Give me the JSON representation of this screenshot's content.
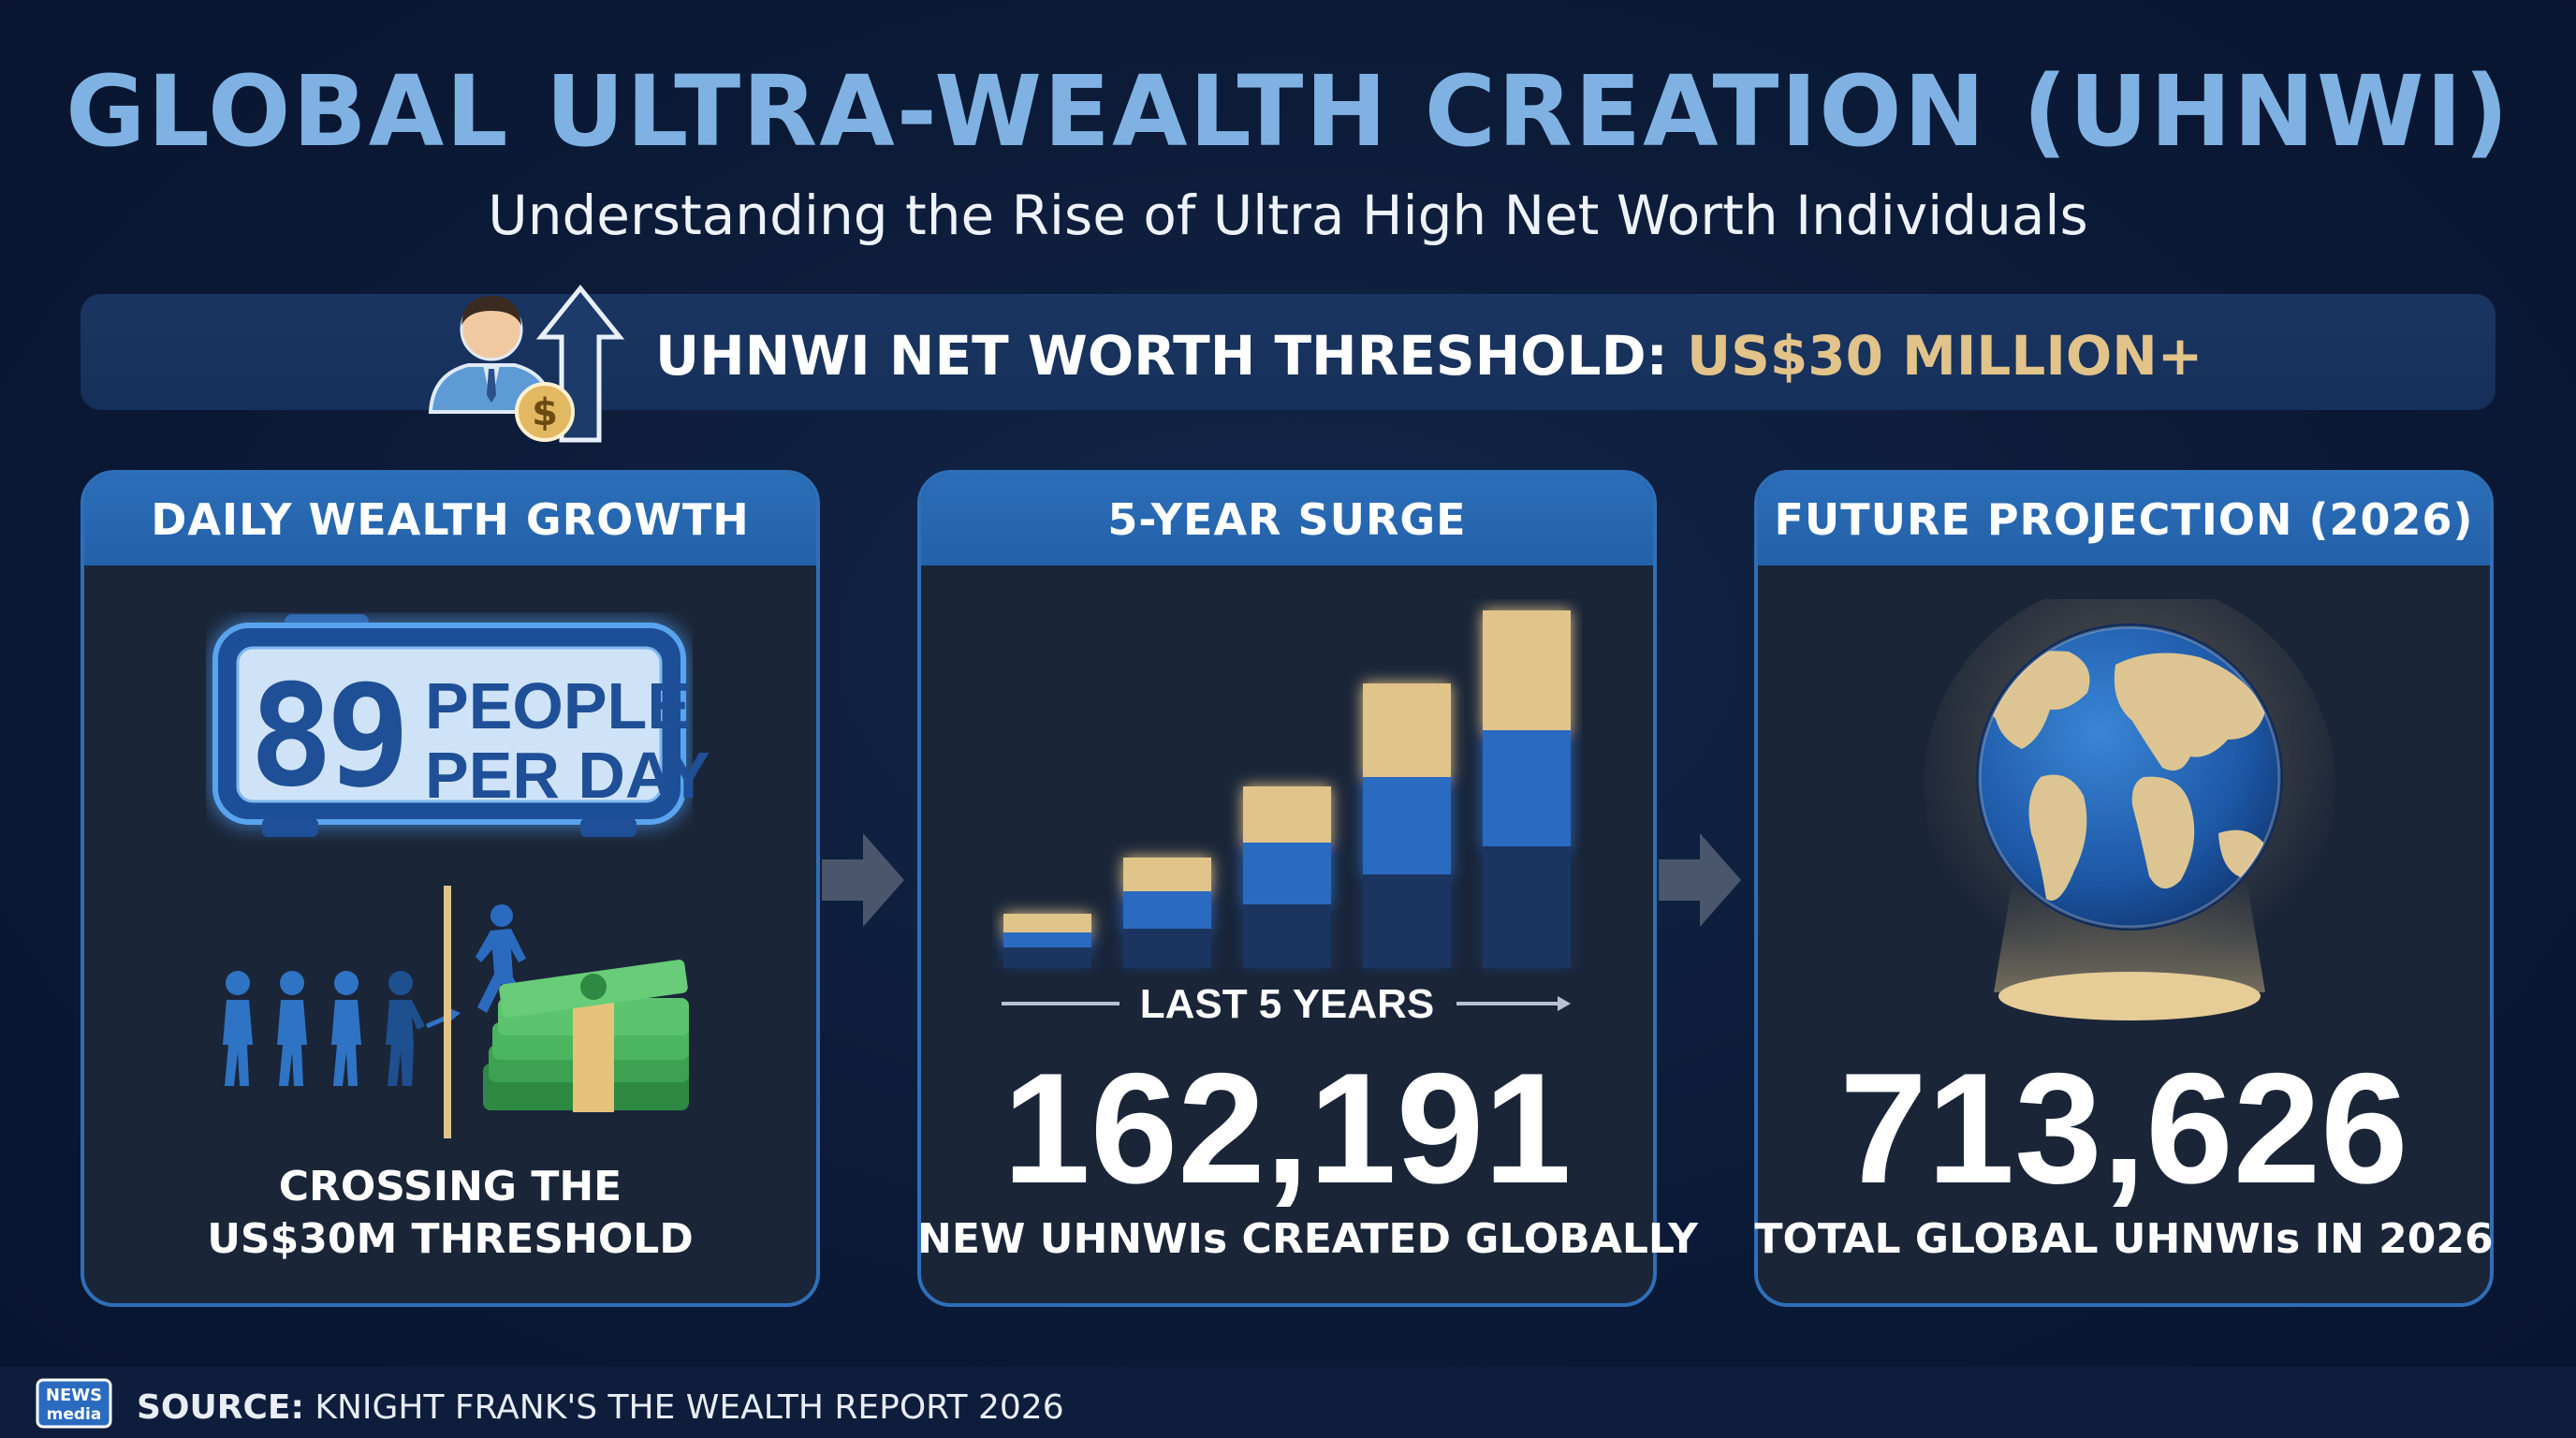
{
  "header": {
    "title": "GLOBAL ULTRA-WEALTH CREATION (UHNWI)",
    "subtitle": "Understanding the Rise of Ultra High Net Worth Individuals"
  },
  "threshold": {
    "label": "UHNWI NET WORTH THRESHOLD: ",
    "value": "US$30 MILLION+",
    "icon": "businessman-dollar-arrow-icon"
  },
  "panels": [
    {
      "title": "DAILY WEALTH GROWTH",
      "clock_number": "89",
      "clock_line1": "PEOPLE",
      "clock_line2": "PER DAY",
      "caption_line1": "CROSSING THE",
      "caption_line2": "US$30M THRESHOLD"
    },
    {
      "title": "5-YEAR SURGE",
      "axis_label": "LAST 5 YEARS",
      "number": "162,191",
      "caption": "NEW UHNWIs CREATED GLOBALLY"
    },
    {
      "title": "FUTURE PROJECTION (2026)",
      "number": "713,626",
      "caption": "TOTAL GLOBAL UHNWIs IN 2026"
    }
  ],
  "footer": {
    "logo_line1": "NEWS",
    "logo_line2": "media",
    "source_label": "SOURCE:",
    "source_text": " KNIGHT FRANK'S THE WEALTH REPORT 2026"
  },
  "colors": {
    "background": "#0b1a36",
    "title": "#7fb2e3",
    "gold": "#e2c38a",
    "panel_border": "#2e6fb8",
    "panel_header": "#2b6eb9"
  }
}
